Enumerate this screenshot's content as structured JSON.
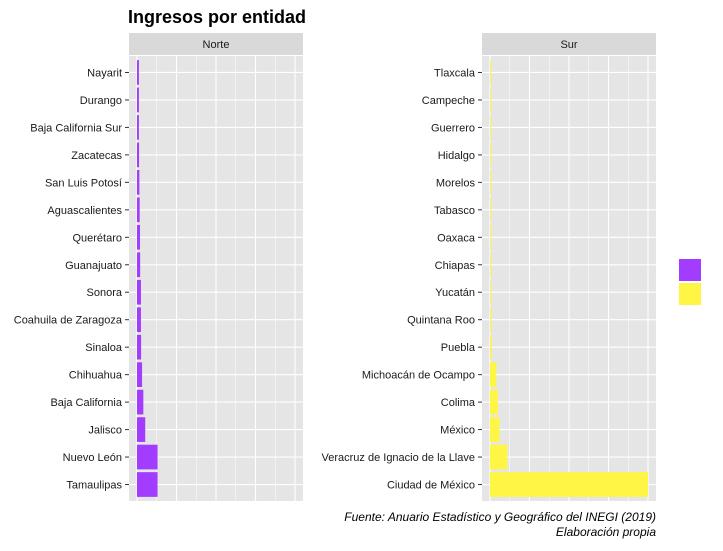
{
  "title": "Ingresos por entidad",
  "caption": {
    "line1": "Fuente: Anuario Estadístico y Geográfico del INEGI (2019)",
    "line2": "Elaboración propia"
  },
  "colors": {
    "panel_bg": "#e5e5e5",
    "strip_bg": "#d9d9d9",
    "grid": "#ffffff",
    "norte": "#a23cff",
    "sur": "#fff545"
  },
  "chart_data": {
    "type": "bar",
    "orientation": "horizontal",
    "xlim": [
      0,
      1
    ],
    "grid": true,
    "legend_position": "right",
    "legend_title": "",
    "facets": [
      {
        "label": "Norte",
        "color": "#a23cff",
        "categories": [
          "Nayarit",
          "Durango",
          "Baja California Sur",
          "Zacatecas",
          "San Luis Potosí",
          "Aguascalientes",
          "Querétaro",
          "Guanajuato",
          "Sonora",
          "Coahuila de Zaragoza",
          "Sinaloa",
          "Chihuahua",
          "Baja California",
          "Jalisco",
          "Nuevo León",
          "Tamaulipas"
        ],
        "values": [
          0.012,
          0.012,
          0.012,
          0.013,
          0.015,
          0.017,
          0.019,
          0.02,
          0.025,
          0.025,
          0.026,
          0.032,
          0.04,
          0.052,
          0.13,
          0.13
        ]
      },
      {
        "label": "Sur",
        "color": "#fff545",
        "categories": [
          "Tlaxcala",
          "Campeche",
          "Guerrero",
          "Hidalgo",
          "Morelos",
          "Tabasco",
          "Oaxaca",
          "Chiapas",
          "Yucatán",
          "Quintana  Roo",
          "Puebla",
          "Michoacán de Ocampo",
          "Colima",
          "México",
          "Veracruz de Ignacio de la Llave",
          "Ciudad de México"
        ],
        "values": [
          0.003,
          0.003,
          0.003,
          0.004,
          0.004,
          0.005,
          0.005,
          0.005,
          0.006,
          0.008,
          0.01,
          0.04,
          0.05,
          0.06,
          0.11,
          1.0
        ]
      }
    ]
  }
}
